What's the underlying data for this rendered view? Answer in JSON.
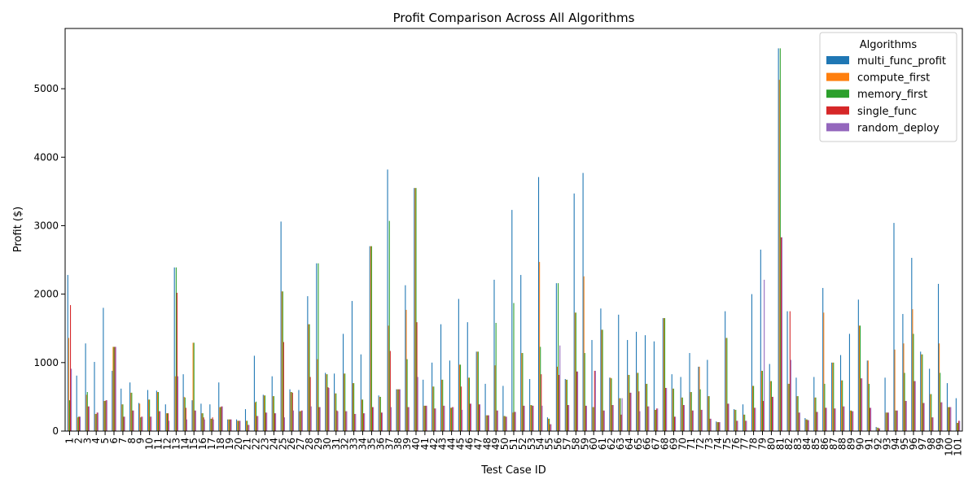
{
  "chart_data": {
    "type": "bar",
    "title": "Profit Comparison Across All Algorithms",
    "xlabel": "Test Case ID",
    "ylabel": "Profit ($)",
    "ylim": [
      0,
      5880
    ],
    "yticks": [
      0,
      1000,
      2000,
      3000,
      4000,
      5000
    ],
    "legend_title": "Algorithms",
    "legend_position": "top-right",
    "categories": [
      "1",
      "2",
      "3",
      "4",
      "5",
      "6",
      "7",
      "8",
      "9",
      "10",
      "11",
      "12",
      "13",
      "14",
      "15",
      "16",
      "17",
      "18",
      "19",
      "20",
      "21",
      "22",
      "23",
      "24",
      "25",
      "26",
      "27",
      "28",
      "29",
      "30",
      "31",
      "32",
      "33",
      "34",
      "35",
      "36",
      "37",
      "38",
      "39",
      "40",
      "41",
      "42",
      "43",
      "44",
      "45",
      "46",
      "47",
      "48",
      "49",
      "50",
      "51",
      "52",
      "53",
      "54",
      "55",
      "56",
      "57",
      "58",
      "59",
      "60",
      "61",
      "62",
      "63",
      "64",
      "65",
      "66",
      "67",
      "68",
      "69",
      "70",
      "71",
      "72",
      "73",
      "74",
      "75",
      "76",
      "77",
      "78",
      "79",
      "80",
      "81",
      "82",
      "83",
      "84",
      "85",
      "86",
      "87",
      "88",
      "89",
      "90",
      "91",
      "92",
      "93",
      "94",
      "95",
      "96",
      "97",
      "98",
      "99",
      "100",
      "101"
    ],
    "series": [
      {
        "name": "multi_func_profit",
        "color": "#1f77b4",
        "values": [
          2280,
          810,
          1280,
          1010,
          1800,
          880,
          620,
          710,
          410,
          600,
          590,
          390,
          2390,
          830,
          450,
          400,
          390,
          710,
          170,
          170,
          320,
          1100,
          530,
          800,
          3060,
          610,
          600,
          1970,
          2450,
          850,
          840,
          1420,
          1900,
          1120,
          2700,
          520,
          3820,
          610,
          2130,
          3550,
          750,
          1000,
          1560,
          1030,
          1930,
          1590,
          1160,
          690,
          2210,
          660,
          3230,
          2280,
          760,
          3710,
          200,
          2160,
          760,
          3470,
          3770,
          1330,
          1790,
          780,
          1700,
          1330,
          1450,
          1400,
          1310,
          1650,
          830,
          790,
          1140,
          940,
          1040,
          140,
          1750,
          320,
          390,
          2000,
          2650,
          980,
          5590,
          1750,
          780,
          190,
          790,
          2090,
          1000,
          1110,
          1420,
          1920,
          1030,
          60,
          780,
          3040,
          1710,
          2530,
          1160,
          910,
          2150,
          700,
          480
        ]
      },
      {
        "name": "compute_first",
        "color": "#ff7f0e",
        "values": [
          1360,
          200,
          530,
          250,
          440,
          1230,
          390,
          560,
          400,
          460,
          570,
          260,
          800,
          500,
          1290,
          260,
          180,
          350,
          170,
          150,
          150,
          420,
          520,
          510,
          2040,
          570,
          290,
          1560,
          1050,
          830,
          550,
          840,
          700,
          460,
          2700,
          500,
          1540,
          610,
          1770,
          3550,
          370,
          650,
          750,
          340,
          970,
          780,
          1160,
          230,
          960,
          220,
          270,
          1140,
          380,
          2470,
          180,
          940,
          750,
          1730,
          2260,
          350,
          1480,
          780,
          480,
          820,
          850,
          690,
          310,
          1650,
          620,
          490,
          570,
          940,
          510,
          130,
          1360,
          310,
          240,
          660,
          880,
          730,
          5130,
          690,
          510,
          170,
          490,
          1730,
          1000,
          740,
          300,
          1540,
          1030,
          50,
          270,
          1190,
          1280,
          1780,
          1120,
          540,
          1280,
          350,
          120
        ]
      },
      {
        "name": "memory_first",
        "color": "#2ca02c",
        "values": [
          450,
          210,
          570,
          250,
          440,
          1230,
          390,
          560,
          200,
          460,
          570,
          260,
          2390,
          490,
          1290,
          260,
          180,
          350,
          170,
          150,
          150,
          430,
          520,
          510,
          2040,
          570,
          290,
          1560,
          2450,
          830,
          550,
          840,
          700,
          460,
          2700,
          500,
          3070,
          610,
          1050,
          3550,
          370,
          650,
          750,
          340,
          970,
          780,
          1160,
          230,
          1580,
          220,
          1870,
          1140,
          380,
          1230,
          180,
          2160,
          750,
          1730,
          1140,
          350,
          1480,
          770,
          480,
          820,
          850,
          690,
          310,
          1650,
          620,
          490,
          570,
          610,
          510,
          130,
          1360,
          310,
          240,
          660,
          880,
          730,
          5590,
          690,
          510,
          170,
          490,
          690,
          1000,
          740,
          300,
          1540,
          690,
          50,
          270,
          300,
          850,
          1420,
          1120,
          540,
          850,
          350,
          120
        ]
      },
      {
        "name": "single_func",
        "color": "#d62728",
        "values": [
          1840,
          210,
          360,
          270,
          450,
          1230,
          210,
          300,
          210,
          210,
          290,
          260,
          2020,
          340,
          300,
          200,
          200,
          360,
          170,
          150,
          90,
          220,
          270,
          260,
          1300,
          560,
          300,
          790,
          350,
          640,
          300,
          290,
          250,
          260,
          350,
          270,
          1170,
          610,
          350,
          1590,
          370,
          330,
          370,
          350,
          650,
          400,
          390,
          230,
          300,
          210,
          280,
          370,
          370,
          830,
          100,
          820,
          380,
          870,
          370,
          880,
          300,
          380,
          240,
          560,
          580,
          360,
          330,
          630,
          210,
          380,
          300,
          310,
          180,
          130,
          400,
          150,
          150,
          340,
          440,
          500,
          2830,
          1750,
          270,
          160,
          280,
          340,
          330,
          360,
          290,
          770,
          340,
          40,
          270,
          300,
          440,
          730,
          410,
          200,
          420,
          350,
          150
        ]
      },
      {
        "name": "random_deploy",
        "color": "#9467bd",
        "values": [
          910,
          210,
          360,
          270,
          450,
          1230,
          210,
          300,
          210,
          210,
          290,
          150,
          800,
          170,
          300,
          170,
          170,
          360,
          170,
          150,
          90,
          220,
          270,
          260,
          200,
          300,
          300,
          360,
          350,
          630,
          290,
          290,
          250,
          260,
          350,
          270,
          350,
          610,
          350,
          790,
          370,
          330,
          370,
          350,
          310,
          400,
          390,
          230,
          300,
          210,
          280,
          370,
          370,
          370,
          100,
          1250,
          380,
          870,
          370,
          880,
          300,
          380,
          480,
          560,
          290,
          360,
          330,
          630,
          210,
          380,
          300,
          310,
          180,
          130,
          400,
          150,
          150,
          340,
          2210,
          500,
          2830,
          1040,
          270,
          160,
          280,
          340,
          330,
          360,
          290,
          770,
          340,
          40,
          270,
          300,
          440,
          730,
          410,
          200,
          420,
          350,
          150
        ]
      }
    ]
  }
}
